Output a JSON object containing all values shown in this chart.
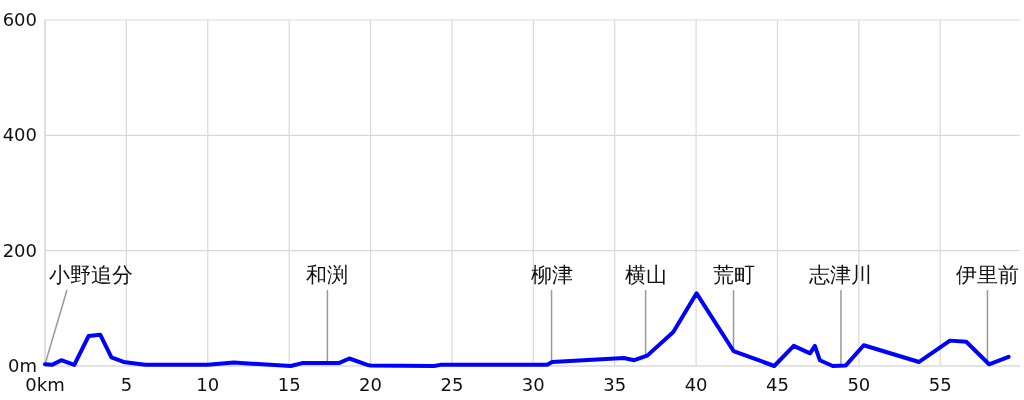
{
  "chart_data": {
    "type": "line",
    "x": [
      0,
      0.43,
      1.0,
      1.8,
      2.68,
      3.4,
      4.08,
      4.83,
      6.16,
      10,
      11.6,
      15.1,
      15.8,
      18.05,
      18.7,
      19.8,
      20,
      23.9,
      24.3,
      30.85,
      31.16,
      35.56,
      36.2,
      37,
      38.6,
      40.03,
      42.3,
      44.8,
      46.0,
      47.0,
      47.3,
      47.6,
      48.4,
      49.2,
      50.3,
      53.7,
      55.6,
      56.6,
      58.0,
      59.2
    ],
    "series": [
      {
        "color": "#0000ff",
        "values": [
          3,
          2,
          10,
          2,
          52,
          54,
          15,
          7,
          2,
          2,
          6,
          0,
          5,
          5,
          13,
          2,
          1,
          0,
          2,
          2,
          7,
          14,
          10,
          18,
          59,
          126,
          26,
          0,
          35,
          22,
          35,
          10,
          0,
          1,
          36,
          7,
          44,
          42,
          3,
          16
        ]
      }
    ],
    "xlim": [
      0,
      59.9
    ],
    "xticks": [
      {
        "value": 0,
        "label": "0km"
      },
      5,
      10,
      15,
      20,
      25,
      30,
      35,
      40,
      45,
      50,
      55
    ],
    "ylim": [
      0,
      600
    ],
    "yticks": [
      {
        "value": 0,
        "label": "0m"
      },
      200,
      400,
      600
    ],
    "grid": true,
    "marker": "none",
    "line_style": "solid",
    "annotations": [
      {
        "text": "小野追分",
        "x": 0,
        "y": 3
      },
      {
        "text": "和渕",
        "x": 17.35,
        "y": 3
      },
      {
        "text": "柳津",
        "x": 31.12,
        "y": 7
      },
      {
        "text": "横山",
        "x": 36.9,
        "y": 17
      },
      {
        "text": "荒町",
        "x": 42.3,
        "y": 26
      },
      {
        "text": "志津川",
        "x": 48.9,
        "y": 1
      },
      {
        "text": "伊里前",
        "x": 57.9,
        "y": 3
      }
    ]
  }
}
